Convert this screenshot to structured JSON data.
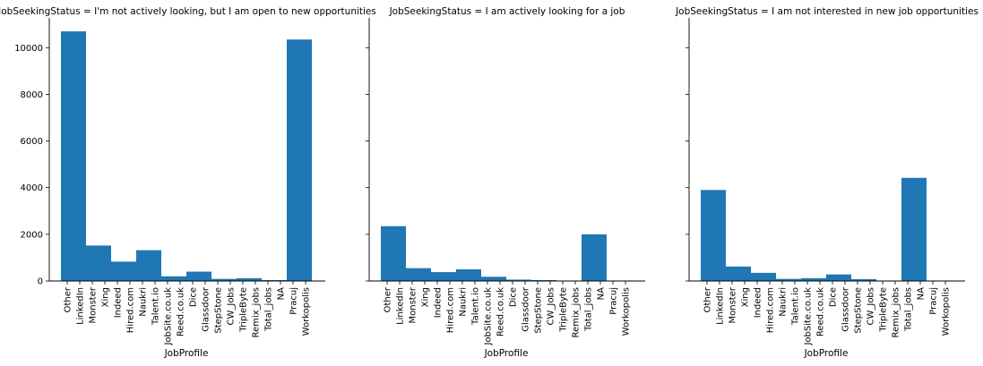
{
  "chart_data": {
    "type": "bar",
    "facet_variable": "JobSeekingStatus",
    "xlabel": "JobProfile",
    "ylabel": "",
    "ylim": [
      0,
      11200
    ],
    "yticks": [
      0,
      2000,
      4000,
      6000,
      8000,
      10000
    ],
    "shared_y": true,
    "grid": false,
    "bar_color": "#1f77b4",
    "x_tick_labels": [
      "Other",
      "LinkedIn",
      "Monster",
      "Xing",
      "Indeed",
      "Hired.com",
      "Naukri",
      "Talent.io",
      "JobSite.co.uk",
      "Reed.co.uk",
      "Dice",
      "Glassdoor",
      "StepStone",
      "CW_Jobs",
      "TripleByte",
      "Remix_jobs",
      "Total_jobs",
      "NA",
      "Pracuj",
      "Workopolis"
    ],
    "panels": [
      {
        "title": "JobSeekingStatus = I'm not actively looking, but I am open to new opportunities",
        "bins": [
          {
            "start": 0,
            "end": 2,
            "value": 10700
          },
          {
            "start": 2,
            "end": 4,
            "value": 1520
          },
          {
            "start": 4,
            "end": 6,
            "value": 830
          },
          {
            "start": 6,
            "end": 8,
            "value": 1320
          },
          {
            "start": 8,
            "end": 10,
            "value": 200
          },
          {
            "start": 10,
            "end": 12,
            "value": 400
          },
          {
            "start": 12,
            "end": 14,
            "value": 90
          },
          {
            "start": 14,
            "end": 16,
            "value": 120
          },
          {
            "start": 16,
            "end": 18,
            "value": 40
          },
          {
            "start": 18,
            "end": 20,
            "value": 10350
          }
        ]
      },
      {
        "title": "JobSeekingStatus = I am actively looking for a job",
        "bins": [
          {
            "start": 0,
            "end": 2,
            "value": 2350
          },
          {
            "start": 2,
            "end": 4,
            "value": 550
          },
          {
            "start": 4,
            "end": 6,
            "value": 380
          },
          {
            "start": 6,
            "end": 8,
            "value": 500
          },
          {
            "start": 8,
            "end": 10,
            "value": 180
          },
          {
            "start": 10,
            "end": 12,
            "value": 60
          },
          {
            "start": 12,
            "end": 14,
            "value": 40
          },
          {
            "start": 14,
            "end": 16,
            "value": 10
          },
          {
            "start": 16,
            "end": 18,
            "value": 2000
          },
          {
            "start": 18,
            "end": 20,
            "value": 5
          }
        ]
      },
      {
        "title": "JobSeekingStatus = I am not interested in new job opportunities",
        "bins": [
          {
            "start": 0,
            "end": 2,
            "value": 3900
          },
          {
            "start": 2,
            "end": 4,
            "value": 620
          },
          {
            "start": 4,
            "end": 6,
            "value": 350
          },
          {
            "start": 6,
            "end": 8,
            "value": 90
          },
          {
            "start": 8,
            "end": 10,
            "value": 120
          },
          {
            "start": 10,
            "end": 12,
            "value": 280
          },
          {
            "start": 12,
            "end": 14,
            "value": 80
          },
          {
            "start": 14,
            "end": 16,
            "value": 10
          },
          {
            "start": 16,
            "end": 18,
            "value": 4420
          },
          {
            "start": 18,
            "end": 20,
            "value": 10
          }
        ]
      }
    ]
  }
}
